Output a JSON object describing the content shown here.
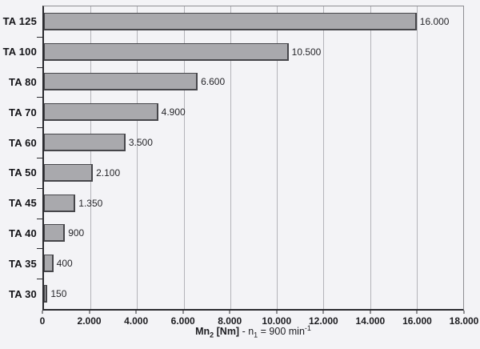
{
  "chart_data": {
    "type": "bar",
    "orientation": "horizontal",
    "title": "",
    "categories": [
      "TA 125",
      "TA 100",
      "TA 80",
      "TA 70",
      "TA 60",
      "TA 50",
      "TA 45",
      "TA 40",
      "TA 35",
      "TA 30"
    ],
    "values": [
      16000,
      10500,
      6600,
      4900,
      3500,
      2100,
      1350,
      900,
      400,
      150
    ],
    "value_labels": [
      "16.000",
      "10.500",
      "6.600",
      "4.900",
      "3.500",
      "2.100",
      "1.350",
      "900",
      "400",
      "150"
    ],
    "xlim": [
      0,
      18000
    ],
    "xtick_interval": 2000,
    "xtick_labels": [
      "0",
      "2.000",
      "4.000",
      "6.000",
      "8.000",
      "10.000",
      "12.000",
      "14.000",
      "16.000",
      "18.000"
    ],
    "xlabel": {
      "bold_prefix": "Mn",
      "bold_sub": "2",
      "bold_suffix": " [Nm]",
      "rest_prefix": " - n",
      "rest_sub": "1",
      "rest_mid": " = 900 min",
      "rest_sup": "-1"
    },
    "grid": true,
    "legend": false,
    "colors": {
      "background": "#f3f3f6",
      "bar_fill": "#a9a9ad",
      "bar_border": "#46464a",
      "grid_line": "#b4b4b9",
      "axis_line": "#2b2b2f",
      "frame_line": "#8e8e92",
      "text": "#1c1c20"
    }
  }
}
